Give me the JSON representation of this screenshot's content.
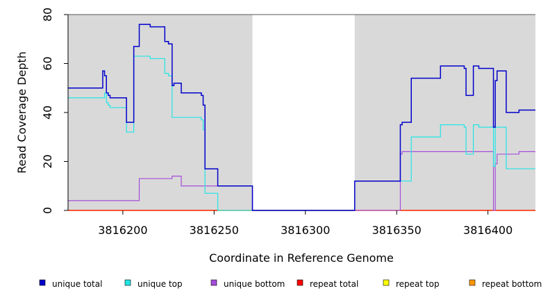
{
  "chart_data": {
    "type": "line",
    "xlabel": "Coordinate in Reference Genome",
    "ylabel": "Read Coverage Depth",
    "xlim": [
      3816170,
      3816426
    ],
    "ylim": [
      0,
      80
    ],
    "xticks": [
      3816200,
      3816250,
      3816300,
      3816350,
      3816400
    ],
    "yticks": [
      0,
      20,
      40,
      60,
      80
    ],
    "shaded_regions": [
      [
        3816170,
        3816271
      ],
      [
        3816327,
        3816426
      ]
    ],
    "colors": {
      "shade": "#d9d9d9",
      "unique_total": "#0000cc",
      "unique_top": "#22e5e5",
      "unique_bottom": "#a64ddb",
      "repeat_total": "#ff0000",
      "repeat_top": "#ffff00",
      "repeat_bottom": "#ff9900"
    },
    "series": [
      {
        "name": "unique total",
        "key": "unique_total",
        "points": [
          [
            3816170,
            50
          ],
          [
            3816189,
            50
          ],
          [
            3816189,
            57
          ],
          [
            3816190,
            57
          ],
          [
            3816190,
            55
          ],
          [
            3816191,
            55
          ],
          [
            3816191,
            48
          ],
          [
            3816192,
            48
          ],
          [
            3816192,
            47
          ],
          [
            3816193,
            47
          ],
          [
            3816193,
            46
          ],
          [
            3816202,
            46
          ],
          [
            3816202,
            36
          ],
          [
            3816206,
            36
          ],
          [
            3816206,
            67
          ],
          [
            3816209,
            67
          ],
          [
            3816209,
            76
          ],
          [
            3816215,
            76
          ],
          [
            3816215,
            75
          ],
          [
            3816223,
            75
          ],
          [
            3816223,
            69
          ],
          [
            3816225,
            69
          ],
          [
            3816225,
            68
          ],
          [
            3816227,
            68
          ],
          [
            3816227,
            51
          ],
          [
            3816228,
            51
          ],
          [
            3816228,
            52
          ],
          [
            3816232,
            52
          ],
          [
            3816232,
            48
          ],
          [
            3816243,
            48
          ],
          [
            3816243,
            47
          ],
          [
            3816244,
            47
          ],
          [
            3816244,
            43
          ],
          [
            3816245,
            43
          ],
          [
            3816245,
            17
          ],
          [
            3816252,
            17
          ],
          [
            3816252,
            10
          ],
          [
            3816271,
            10
          ],
          [
            3816271,
            0
          ],
          [
            3816327,
            0
          ],
          [
            3816327,
            12
          ],
          [
            3816352,
            12
          ],
          [
            3816352,
            35
          ],
          [
            3816353,
            35
          ],
          [
            3816353,
            36
          ],
          [
            3816358,
            36
          ],
          [
            3816358,
            54
          ],
          [
            3816374,
            54
          ],
          [
            3816374,
            59
          ],
          [
            3816387,
            59
          ],
          [
            3816387,
            58
          ],
          [
            3816388,
            58
          ],
          [
            3816388,
            47
          ],
          [
            3816392,
            47
          ],
          [
            3816392,
            59
          ],
          [
            3816395,
            59
          ],
          [
            3816395,
            58
          ],
          [
            3816403,
            58
          ],
          [
            3816403,
            34
          ],
          [
            3816404,
            34
          ],
          [
            3816404,
            53
          ],
          [
            3816405,
            53
          ],
          [
            3816405,
            57
          ],
          [
            3816410,
            57
          ],
          [
            3816410,
            40
          ],
          [
            3816417,
            40
          ],
          [
            3816417,
            41
          ],
          [
            3816426,
            41
          ]
        ]
      },
      {
        "name": "unique top",
        "key": "unique_top",
        "points": [
          [
            3816170,
            46
          ],
          [
            3816190,
            46
          ],
          [
            3816190,
            48
          ],
          [
            3816191,
            48
          ],
          [
            3816191,
            44
          ],
          [
            3816192,
            44
          ],
          [
            3816192,
            43
          ],
          [
            3816193,
            43
          ],
          [
            3816193,
            42
          ],
          [
            3816202,
            42
          ],
          [
            3816202,
            32
          ],
          [
            3816206,
            32
          ],
          [
            3816206,
            63
          ],
          [
            3816215,
            63
          ],
          [
            3816215,
            62
          ],
          [
            3816223,
            62
          ],
          [
            3816223,
            56
          ],
          [
            3816225,
            56
          ],
          [
            3816225,
            55
          ],
          [
            3816227,
            55
          ],
          [
            3816227,
            38
          ],
          [
            3816243,
            38
          ],
          [
            3816243,
            37
          ],
          [
            3816244,
            37
          ],
          [
            3816244,
            33
          ],
          [
            3816245,
            33
          ],
          [
            3816245,
            7
          ],
          [
            3816252,
            7
          ],
          [
            3816252,
            0
          ],
          [
            3816327,
            0
          ],
          [
            3816327,
            12
          ],
          [
            3816358,
            12
          ],
          [
            3816358,
            30
          ],
          [
            3816374,
            30
          ],
          [
            3816374,
            35
          ],
          [
            3816387,
            35
          ],
          [
            3816387,
            34
          ],
          [
            3816388,
            34
          ],
          [
            3816388,
            23
          ],
          [
            3816392,
            23
          ],
          [
            3816392,
            35
          ],
          [
            3816395,
            35
          ],
          [
            3816395,
            34
          ],
          [
            3816403,
            34
          ],
          [
            3816403,
            18
          ],
          [
            3816404,
            18
          ],
          [
            3816404,
            34
          ],
          [
            3816410,
            34
          ],
          [
            3816410,
            17
          ],
          [
            3816426,
            17
          ]
        ]
      },
      {
        "name": "unique bottom",
        "key": "unique_bottom",
        "points": [
          [
            3816170,
            4
          ],
          [
            3816209,
            4
          ],
          [
            3816209,
            13
          ],
          [
            3816227,
            13
          ],
          [
            3816227,
            14
          ],
          [
            3816232,
            14
          ],
          [
            3816232,
            10
          ],
          [
            3816252,
            10
          ],
          [
            3816252,
            10
          ],
          [
            3816271,
            10
          ],
          [
            3816271,
            0
          ],
          [
            3816352,
            0
          ],
          [
            3816352,
            23
          ],
          [
            3816353,
            23
          ],
          [
            3816353,
            24
          ],
          [
            3816403,
            24
          ],
          [
            3816403,
            0
          ],
          [
            3816404,
            0
          ],
          [
            3816404,
            19
          ],
          [
            3816405,
            19
          ],
          [
            3816405,
            23
          ],
          [
            3816417,
            23
          ],
          [
            3816417,
            24
          ],
          [
            3816426,
            24
          ]
        ]
      },
      {
        "name": "repeat total",
        "key": "repeat_total",
        "points": [
          [
            3816170,
            0
          ],
          [
            3816426,
            0
          ]
        ]
      },
      {
        "name": "repeat top",
        "key": "repeat_top",
        "points": [
          [
            3816170,
            0
          ],
          [
            3816426,
            0
          ]
        ]
      },
      {
        "name": "repeat bottom",
        "key": "repeat_bottom",
        "points": [
          [
            3816170,
            0
          ],
          [
            3816426,
            0
          ]
        ]
      }
    ]
  },
  "legend": [
    {
      "label": "unique total",
      "key": "unique_total"
    },
    {
      "label": "unique top",
      "key": "unique_top"
    },
    {
      "label": "unique bottom",
      "key": "unique_bottom"
    },
    {
      "label": "repeat total",
      "key": "repeat_total"
    },
    {
      "label": "repeat top",
      "key": "repeat_top"
    },
    {
      "label": "repeat bottom",
      "key": "repeat_bottom"
    }
  ]
}
